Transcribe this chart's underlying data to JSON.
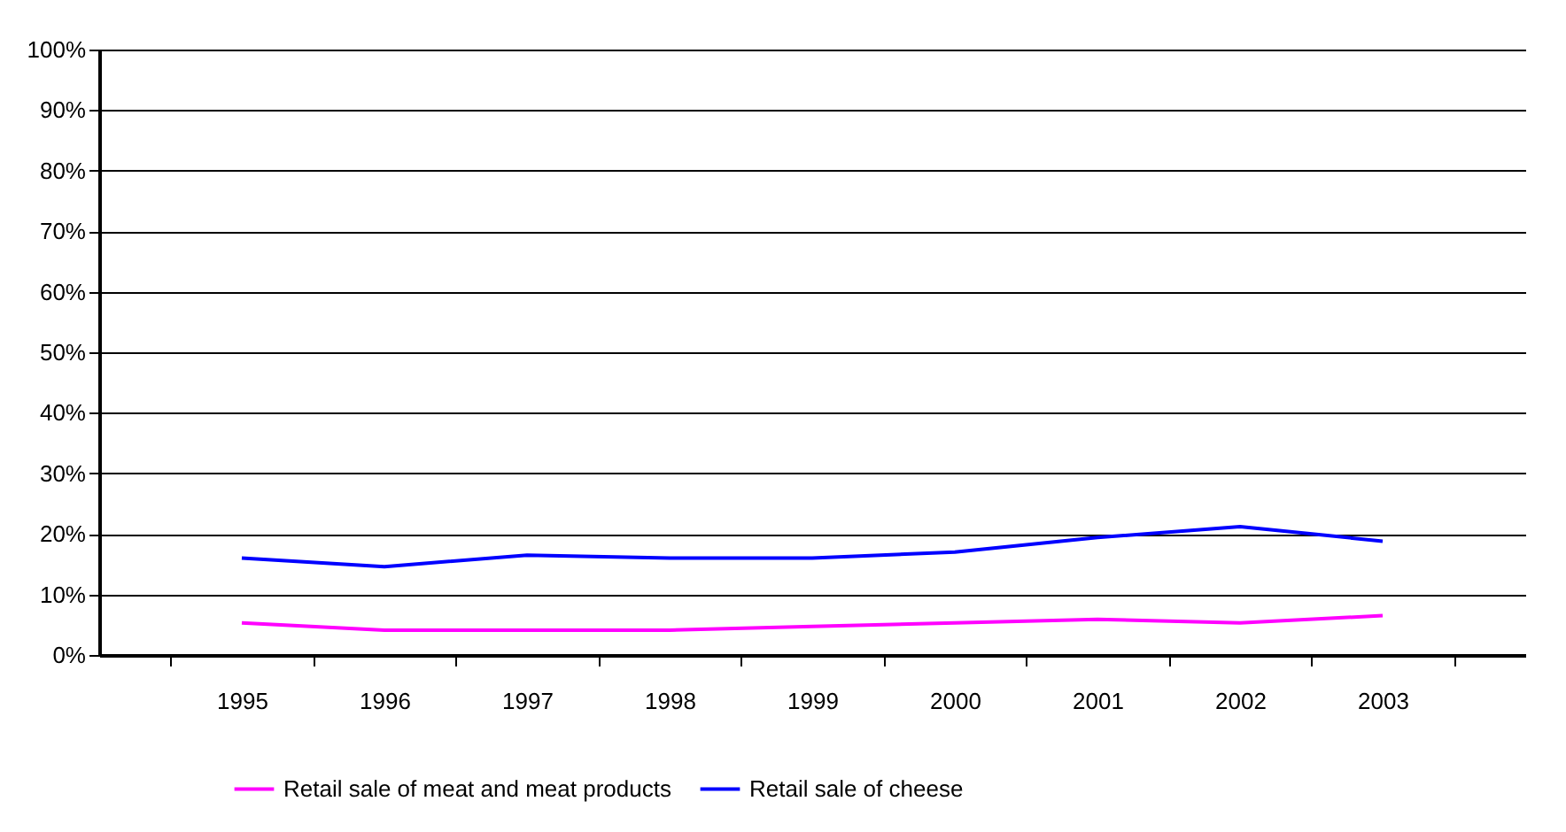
{
  "chart_data": {
    "type": "line",
    "categories": [
      "1995",
      "1996",
      "1997",
      "1998",
      "1999",
      "2000",
      "2001",
      "2002",
      "2003"
    ],
    "series": [
      {
        "name": "Retail sale of meat and meat products",
        "color": "#ff00ff",
        "values": [
          5.3,
          4.1,
          4.1,
          4.1,
          4.7,
          5.3,
          5.9,
          5.3,
          6.5
        ]
      },
      {
        "name": "Retail sale of cheese",
        "color": "#0000ff",
        "values": [
          16,
          14.6,
          16.5,
          16,
          16,
          17,
          19.4,
          21.2,
          18.8
        ]
      }
    ],
    "ylim": [
      0,
      100
    ],
    "yticks": [
      {
        "value": 0,
        "label": "0%"
      },
      {
        "value": 10,
        "label": "10%"
      },
      {
        "value": 20,
        "label": "20%"
      },
      {
        "value": 30,
        "label": "30%"
      },
      {
        "value": 40,
        "label": "40%"
      },
      {
        "value": 50,
        "label": "50%"
      },
      {
        "value": 60,
        "label": "60%"
      },
      {
        "value": 70,
        "label": "70%"
      },
      {
        "value": 80,
        "label": "80%"
      },
      {
        "value": 90,
        "label": "90%"
      },
      {
        "value": 100,
        "label": "100%"
      }
    ],
    "grid": "y",
    "legend": "bottom",
    "marker": "none",
    "line_style": "solid"
  }
}
